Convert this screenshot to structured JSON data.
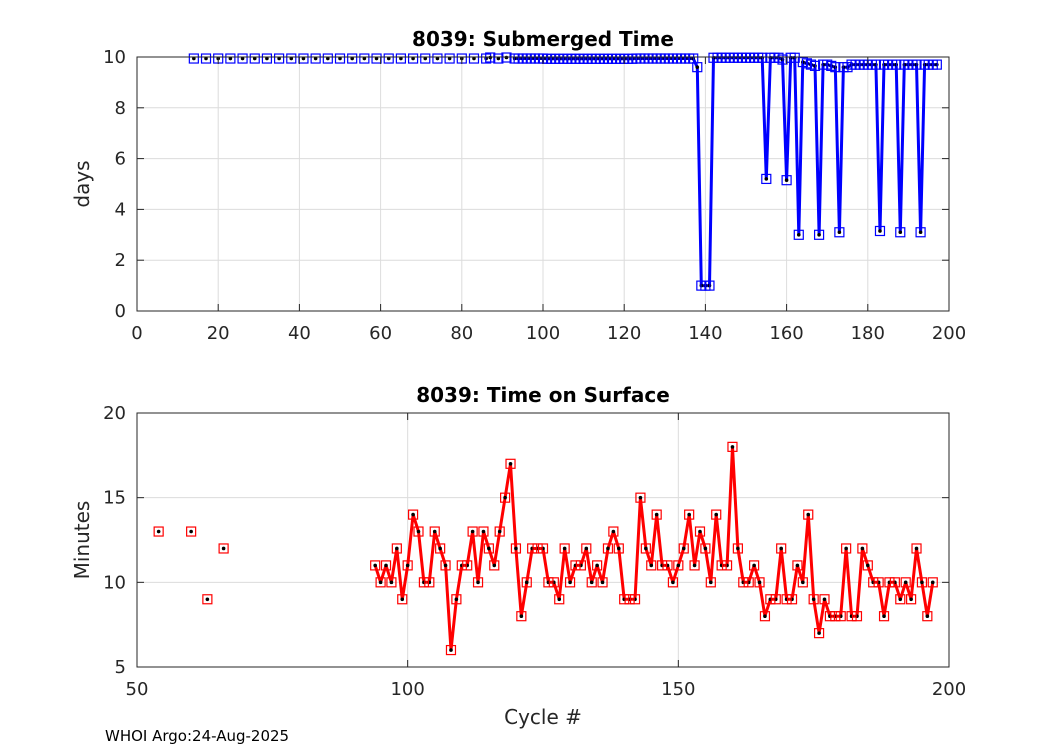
{
  "footer": "WHOI Argo:24-Aug-2025",
  "chart_data": [
    {
      "type": "line",
      "title": "8039: Submerged Time",
      "xlabel": "",
      "ylabel": "days",
      "xlim": [
        0,
        200
      ],
      "ylim": [
        0,
        10
      ],
      "xticks": [
        0,
        20,
        40,
        60,
        80,
        100,
        120,
        140,
        160,
        180,
        200
      ],
      "yticks": [
        0,
        2,
        4,
        6,
        8,
        10
      ],
      "grid": true,
      "color": "#0000ff",
      "marker": "square",
      "scatter_x": [
        14,
        17,
        20,
        23,
        26,
        29,
        32,
        35,
        38,
        41,
        44,
        47,
        50,
        53,
        56,
        59,
        62,
        65,
        68,
        71,
        74,
        77,
        80,
        83,
        86,
        87,
        89,
        91
      ],
      "scatter_y": [
        9.94,
        9.94,
        9.94,
        9.94,
        9.94,
        9.94,
        9.94,
        9.94,
        9.94,
        9.94,
        9.94,
        9.94,
        9.94,
        9.94,
        9.94,
        9.94,
        9.94,
        9.94,
        9.94,
        9.94,
        9.94,
        9.94,
        9.94,
        9.94,
        9.94,
        9.98,
        9.94,
        9.98
      ],
      "x": [
        93,
        94,
        95,
        96,
        97,
        98,
        99,
        100,
        101,
        102,
        103,
        104,
        105,
        106,
        107,
        108,
        109,
        110,
        111,
        112,
        113,
        114,
        115,
        116,
        117,
        118,
        119,
        120,
        121,
        122,
        123,
        124,
        125,
        126,
        127,
        128,
        129,
        130,
        131,
        132,
        133,
        134,
        135,
        136,
        137,
        138,
        139,
        140,
        141,
        142,
        143,
        144,
        145,
        146,
        147,
        148,
        149,
        150,
        151,
        152,
        153,
        154,
        155,
        156,
        157,
        158,
        159,
        160,
        161,
        162,
        163,
        164,
        165,
        166,
        167,
        168,
        169,
        170,
        171,
        172,
        173,
        174,
        175,
        176,
        177,
        178,
        179,
        180,
        181,
        182,
        183,
        184,
        185,
        186,
        187,
        188,
        189,
        190,
        191,
        192,
        193,
        194,
        195,
        196,
        197
      ],
      "y": [
        9.94,
        9.94,
        9.94,
        9.94,
        9.94,
        9.94,
        9.94,
        9.94,
        9.93,
        9.93,
        9.93,
        9.93,
        9.93,
        9.93,
        9.93,
        9.93,
        9.93,
        9.93,
        9.93,
        9.93,
        9.93,
        9.93,
        9.93,
        9.93,
        9.93,
        9.93,
        9.93,
        9.93,
        9.93,
        9.93,
        9.94,
        9.94,
        9.94,
        9.94,
        9.94,
        9.94,
        9.94,
        9.94,
        9.94,
        9.94,
        9.94,
        9.94,
        9.94,
        9.94,
        9.94,
        9.6,
        1.0,
        1.0,
        1.0,
        9.97,
        9.97,
        9.97,
        9.97,
        9.97,
        9.97,
        9.97,
        9.97,
        9.97,
        9.97,
        9.97,
        9.97,
        9.97,
        5.2,
        9.97,
        9.97,
        9.97,
        9.9,
        5.15,
        9.97,
        9.97,
        3.0,
        9.8,
        9.75,
        9.7,
        9.65,
        3.0,
        9.7,
        9.7,
        9.65,
        9.6,
        3.1,
        9.6,
        9.6,
        9.7,
        9.7,
        9.7,
        9.7,
        9.7,
        9.7,
        9.7,
        3.15,
        9.7,
        9.7,
        9.7,
        9.7,
        3.1,
        9.7,
        9.7,
        9.7,
        9.7,
        3.1,
        9.7,
        9.7,
        9.7,
        9.7
      ]
    },
    {
      "type": "line",
      "title": "8039: Time on Surface",
      "xlabel": "Cycle #",
      "ylabel": "Minutes",
      "xlim": [
        50,
        200
      ],
      "ylim": [
        5,
        20
      ],
      "xticks": [
        50,
        100,
        150,
        200
      ],
      "yticks": [
        5,
        10,
        15,
        20
      ],
      "grid": true,
      "color": "#ff0000",
      "marker": "square",
      "scatter_x": [
        54,
        60,
        63,
        66
      ],
      "scatter_y": [
        13,
        13,
        9,
        12
      ],
      "x": [
        94,
        95,
        96,
        97,
        98,
        99,
        100,
        101,
        102,
        103,
        104,
        105,
        106,
        107,
        108,
        109,
        110,
        111,
        112,
        113,
        114,
        115,
        116,
        117,
        118,
        119,
        120,
        121,
        122,
        123,
        124,
        125,
        126,
        127,
        128,
        129,
        130,
        131,
        132,
        133,
        134,
        135,
        136,
        137,
        138,
        139,
        140,
        141,
        142,
        143,
        144,
        145,
        146,
        147,
        148,
        149,
        150,
        151,
        152,
        153,
        154,
        155,
        156,
        157,
        158,
        159,
        160,
        161,
        162,
        163,
        164,
        165,
        166,
        167,
        168,
        169,
        170,
        171,
        172,
        173,
        174,
        175,
        176,
        177,
        178,
        179,
        180,
        181,
        182,
        183,
        184,
        185,
        186,
        187,
        188,
        189,
        190,
        191,
        192,
        193,
        194,
        195,
        196,
        197
      ],
      "y": [
        11,
        10,
        11,
        10,
        12,
        9,
        11,
        14,
        13,
        10,
        10,
        13,
        12,
        11,
        6,
        9,
        11,
        11,
        13,
        10,
        13,
        12,
        11,
        13,
        15,
        17,
        12,
        8,
        10,
        12,
        12,
        12,
        10,
        10,
        9,
        12,
        10,
        11,
        11,
        12,
        10,
        11,
        10,
        12,
        13,
        12,
        9,
        9,
        9,
        15,
        12,
        11,
        14,
        11,
        11,
        10,
        11,
        12,
        14,
        11,
        13,
        12,
        10,
        14,
        11,
        11,
        18,
        12,
        10,
        10,
        11,
        10,
        8,
        9,
        9,
        12,
        9,
        9,
        11,
        10,
        14,
        9,
        7,
        9,
        8,
        8,
        8,
        12,
        8,
        8,
        12,
        11,
        10,
        10,
        8,
        10,
        10,
        9,
        10,
        9,
        12,
        10,
        8,
        10
      ]
    }
  ]
}
